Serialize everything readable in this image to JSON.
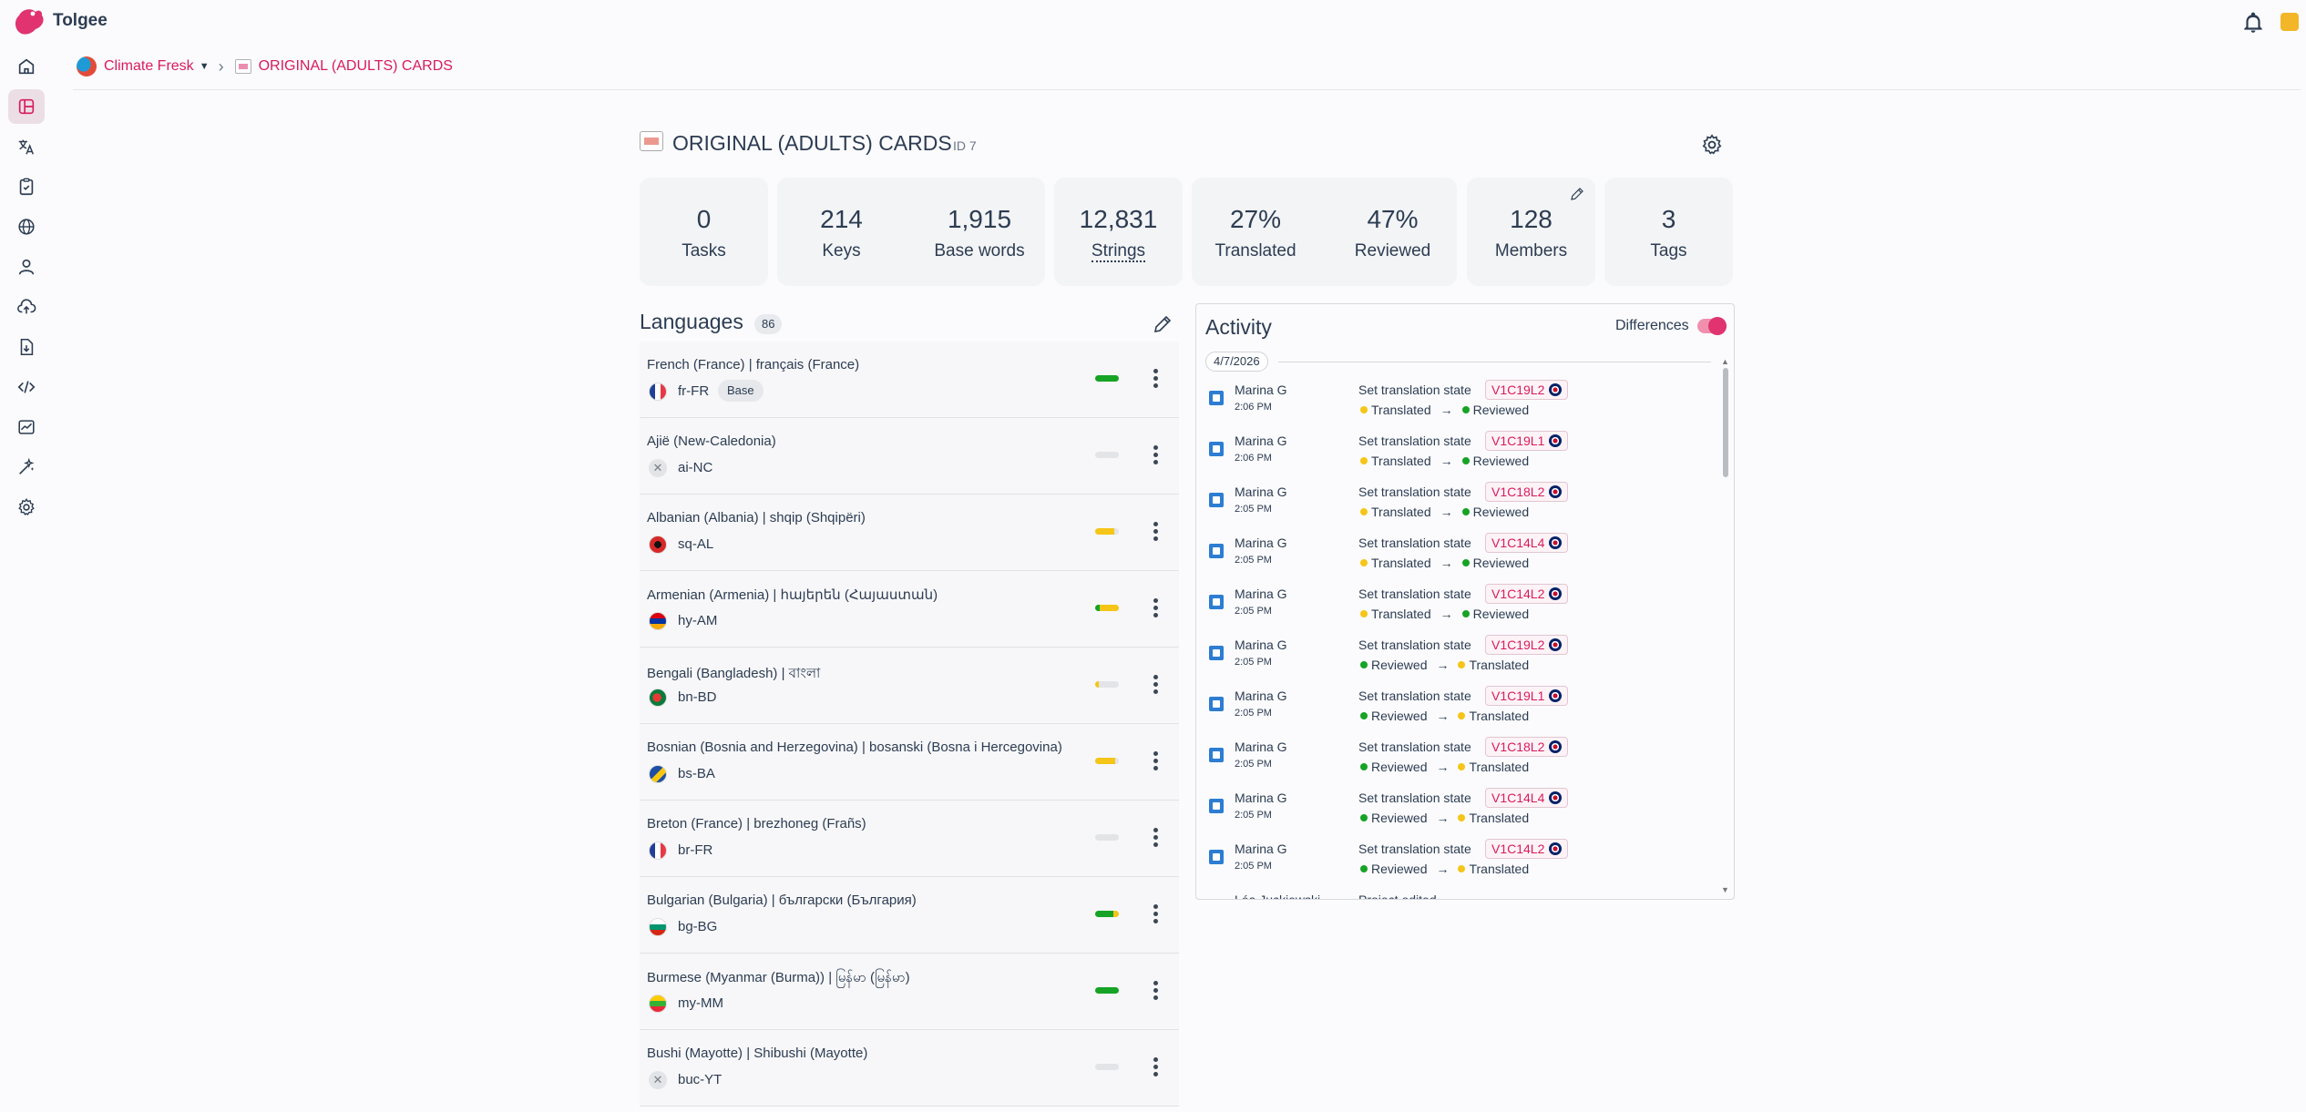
{
  "app": {
    "name": "Tolgee"
  },
  "breadcrumb": {
    "organization": "Climate Fresk",
    "project": "ORIGINAL (ADULTS) CARDS"
  },
  "project": {
    "title": "ORIGINAL (ADULTS) CARDS",
    "id_label": "ID 7"
  },
  "stats": [
    {
      "value": "0",
      "label": "Tasks"
    },
    {
      "value": "214",
      "label": "Keys"
    },
    {
      "value": "1,915",
      "label": "Base words"
    },
    {
      "value": "12,831",
      "label": "Strings"
    },
    {
      "value": "27%",
      "label": "Translated"
    },
    {
      "value": "47%",
      "label": "Reviewed"
    },
    {
      "value": "128",
      "label": "Members"
    },
    {
      "value": "3",
      "label": "Tags"
    }
  ],
  "languages": {
    "title": "Languages",
    "count": "86",
    "items": [
      {
        "name": "French (France) | français (France)",
        "code": "fr-FR",
        "base": "Base",
        "flag": "fr",
        "reviewed": 1.0,
        "translated": 0.0
      },
      {
        "name": "Ajië (New-Caledonia)",
        "code": "ai-NC",
        "flag": "none",
        "reviewed": 0.0,
        "translated": 0.0
      },
      {
        "name": "Albanian (Albania) | shqip (Shqipëri)",
        "code": "sq-AL",
        "flag": "al",
        "reviewed": 0.0,
        "translated": 0.8
      },
      {
        "name": "Armenian (Armenia) | հայերեն (Հայաստան)",
        "code": "hy-AM",
        "flag": "am",
        "reviewed": 0.2,
        "translated": 0.8
      },
      {
        "name": "Bengali (Bangladesh) | বাংলা",
        "code": "bn-BD",
        "flag": "bd",
        "reviewed": 0.0,
        "translated": 0.15
      },
      {
        "name": "Bosnian (Bosnia and Herzegovina) | bosanski (Bosna i Hercegovina)",
        "code": "bs-BA",
        "flag": "ba",
        "reviewed": 0.0,
        "translated": 0.85
      },
      {
        "name": "Breton (France) | brezhoneg (Frañs)",
        "code": "br-FR",
        "flag": "fr",
        "reviewed": 0.0,
        "translated": 0.0
      },
      {
        "name": "Bulgarian (Bulgaria) | български (България)",
        "code": "bg-BG",
        "flag": "bg",
        "reviewed": 0.75,
        "translated": 0.25
      },
      {
        "name": "Burmese (Myanmar (Burma)) | မြန်မာ (မြန်မာ)",
        "code": "my-MM",
        "flag": "mm",
        "reviewed": 1.0,
        "translated": 0.0
      },
      {
        "name": "Bushi (Mayotte) | Shibushi (Mayotte)",
        "code": "buc-YT",
        "flag": "none",
        "reviewed": 0.0,
        "translated": 0.0
      }
    ]
  },
  "activity": {
    "title": "Activity",
    "differences_label": "Differences",
    "date": "4/7/2026",
    "entries": [
      {
        "user": "Marina G",
        "time": "2:06 PM",
        "action": "Set translation state",
        "key": "V1C19L2",
        "from": "Translated",
        "to": "Reviewed"
      },
      {
        "user": "Marina G",
        "time": "2:06 PM",
        "action": "Set translation state",
        "key": "V1C19L1",
        "from": "Translated",
        "to": "Reviewed"
      },
      {
        "user": "Marina G",
        "time": "2:05 PM",
        "action": "Set translation state",
        "key": "V1C18L2",
        "from": "Translated",
        "to": "Reviewed"
      },
      {
        "user": "Marina G",
        "time": "2:05 PM",
        "action": "Set translation state",
        "key": "V1C14L4",
        "from": "Translated",
        "to": "Reviewed"
      },
      {
        "user": "Marina G",
        "time": "2:05 PM",
        "action": "Set translation state",
        "key": "V1C14L2",
        "from": "Translated",
        "to": "Reviewed"
      },
      {
        "user": "Marina G",
        "time": "2:05 PM",
        "action": "Set translation state",
        "key": "V1C19L2",
        "from": "Reviewed",
        "to": "Translated"
      },
      {
        "user": "Marina G",
        "time": "2:05 PM",
        "action": "Set translation state",
        "key": "V1C19L1",
        "from": "Reviewed",
        "to": "Translated"
      },
      {
        "user": "Marina G",
        "time": "2:05 PM",
        "action": "Set translation state",
        "key": "V1C18L2",
        "from": "Reviewed",
        "to": "Translated"
      },
      {
        "user": "Marina G",
        "time": "2:05 PM",
        "action": "Set translation state",
        "key": "V1C14L4",
        "from": "Reviewed",
        "to": "Translated"
      },
      {
        "user": "Marina G",
        "time": "2:05 PM",
        "action": "Set translation state",
        "key": "V1C14L2",
        "from": "Reviewed",
        "to": "Translated"
      }
    ],
    "partial": {
      "user": "Léa Juckiewski",
      "action": "Project edited"
    }
  },
  "icons": {
    "nav": [
      "home-icon",
      "projects-icon",
      "translations-icon",
      "tasks-icon",
      "languages-icon",
      "members-icon",
      "import-icon",
      "export-icon",
      "developer-icon",
      "dashboard-icon",
      "ai-icon",
      "settings-icon"
    ],
    "header": [
      "bell-icon"
    ]
  },
  "colors": {
    "accent": "#d81b5e",
    "reviewed": "#17a325",
    "translated": "#f5c518"
  }
}
